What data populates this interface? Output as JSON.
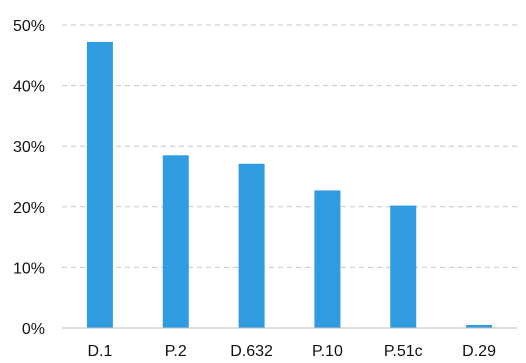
{
  "chart_data": {
    "type": "bar",
    "title": "",
    "xlabel": "",
    "ylabel": "",
    "categories": [
      "D.1",
      "P.2",
      "D.632",
      "P.10",
      "P.51c",
      "D.29"
    ],
    "values": [
      47.2,
      28.5,
      27.1,
      22.7,
      20.2,
      0.5
    ],
    "ylim": [
      0,
      50
    ],
    "yticks": [
      0,
      10,
      20,
      30,
      40,
      50
    ],
    "ytick_labels": [
      "0%",
      "10%",
      "20%",
      "30%",
      "40%",
      "50%"
    ],
    "bar_color": "#2f9be0",
    "grid": "horizontal dashed",
    "legend": "none"
  }
}
